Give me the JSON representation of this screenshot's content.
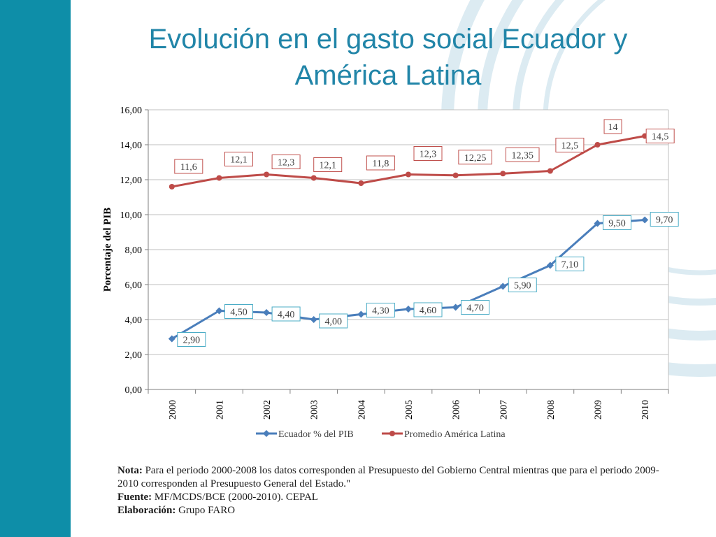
{
  "slide": {
    "title_line1": "Evolución en el gasto social Ecuador y",
    "title_line2": "América Latina"
  },
  "colors": {
    "sidebar": "#0e8ea8",
    "title": "#2185a8",
    "ecuador": "#4a7ebb",
    "latam": "#be4b48",
    "label_border_ecuador": "#4bacc6",
    "label_border_latam": "#c0504d",
    "grid": "#bfbfbf"
  },
  "chart_data": {
    "type": "line",
    "title": "",
    "xlabel": "",
    "ylabel": "Porcentaje del PIB",
    "ylim": [
      0,
      16
    ],
    "yticks": [
      "0,00",
      "2,00",
      "4,00",
      "6,00",
      "8,00",
      "10,00",
      "12,00",
      "14,00",
      "16,00"
    ],
    "categories": [
      "2000",
      "2001",
      "2002",
      "2003",
      "2004",
      "2005",
      "2006",
      "2007",
      "2008",
      "2009",
      "2010"
    ],
    "legend_position": "bottom",
    "series": [
      {
        "name": "Ecuador % del PIB",
        "values": [
          2.9,
          4.5,
          4.4,
          4.0,
          4.3,
          4.6,
          4.7,
          5.9,
          7.1,
          9.5,
          9.7
        ],
        "labels": [
          "2,90",
          "4,50",
          "4,40",
          "4,00",
          "4,30",
          "4,60",
          "4,70",
          "5,90",
          "7,10",
          "9,50",
          "9,70"
        ],
        "marker": "diamond"
      },
      {
        "name": "Promedio América Latina",
        "values": [
          11.6,
          12.1,
          12.3,
          12.1,
          11.8,
          12.3,
          12.25,
          12.35,
          12.5,
          14,
          14.5
        ],
        "labels": [
          "11,6",
          "12,1",
          "12,3",
          "12,1",
          "11,8",
          "12,3",
          "12,25",
          "12,35",
          "12,5",
          "14",
          "14,5"
        ],
        "marker": "circle"
      }
    ]
  },
  "notes": {
    "nota_label": "Nota:",
    "nota_text": "Para el periodo 2000-2008 los datos corresponden al Presupuesto del Gobierno Central mientras que para el periodo 2009-2010 corresponden al Presupuesto General del Estado.\"",
    "fuente_label": "Fuente:",
    "fuente_text": "MF/MCDS/BCE (2000-2010). CEPAL",
    "elaboracion_label": "Elaboración:",
    "elaboracion_text": "Grupo FARO"
  }
}
